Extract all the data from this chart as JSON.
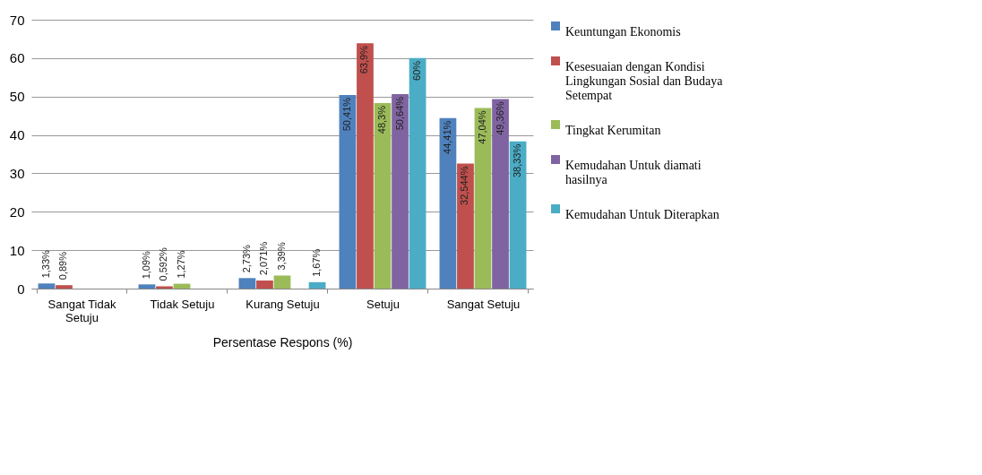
{
  "chart_data": {
    "type": "bar",
    "xlabel": "Persentase Respons (%)",
    "categories": [
      "Sangat Tidak Setuju",
      "Tidak Setuju",
      "Kurang Setuju",
      "Setuju",
      "Sangat Setuju"
    ],
    "ylim": [
      0,
      70
    ],
    "yticks": [
      0,
      10,
      20,
      30,
      40,
      50,
      60,
      70
    ],
    "grid": "y",
    "legend": "right",
    "series": [
      {
        "name": "Keuntungan Ekonomis",
        "color": "#4f81bd",
        "values": [
          1.33,
          1.09,
          2.73,
          50.41,
          44.41
        ],
        "value_labels": [
          "1,33%",
          "1,09%",
          "2,73%",
          "50,41%",
          "44,41%"
        ]
      },
      {
        "name": "Kesesuaian dengan Kondisi Lingkungan Sosial dan Budaya Setempat",
        "color": "#c0504d",
        "values": [
          0.89,
          0.592,
          2.071,
          63.9,
          32.544
        ],
        "value_labels": [
          "0,89%",
          "0,592%",
          "2,071%",
          "63,9%",
          "32,544%"
        ]
      },
      {
        "name": "Tingkat Kerumitan",
        "color": "#9bbb59",
        "values": [
          null,
          1.27,
          3.39,
          48.3,
          47.04
        ],
        "value_labels": [
          null,
          "1,27%",
          "3,39%",
          "48,3%",
          "47,04%"
        ]
      },
      {
        "name": "Kemudahan Untuk diamati hasilnya",
        "color": "#8064a2",
        "values": [
          null,
          null,
          null,
          50.64,
          49.36
        ],
        "value_labels": [
          null,
          null,
          null,
          "50,64%",
          "49,36%"
        ]
      },
      {
        "name": "Kemudahan Untuk Diterapkan",
        "color": "#4bacc6",
        "values": [
          null,
          null,
          1.67,
          60,
          38.33
        ],
        "value_labels": [
          null,
          null,
          "1,67%",
          "60%",
          "38,33%"
        ]
      }
    ]
  }
}
